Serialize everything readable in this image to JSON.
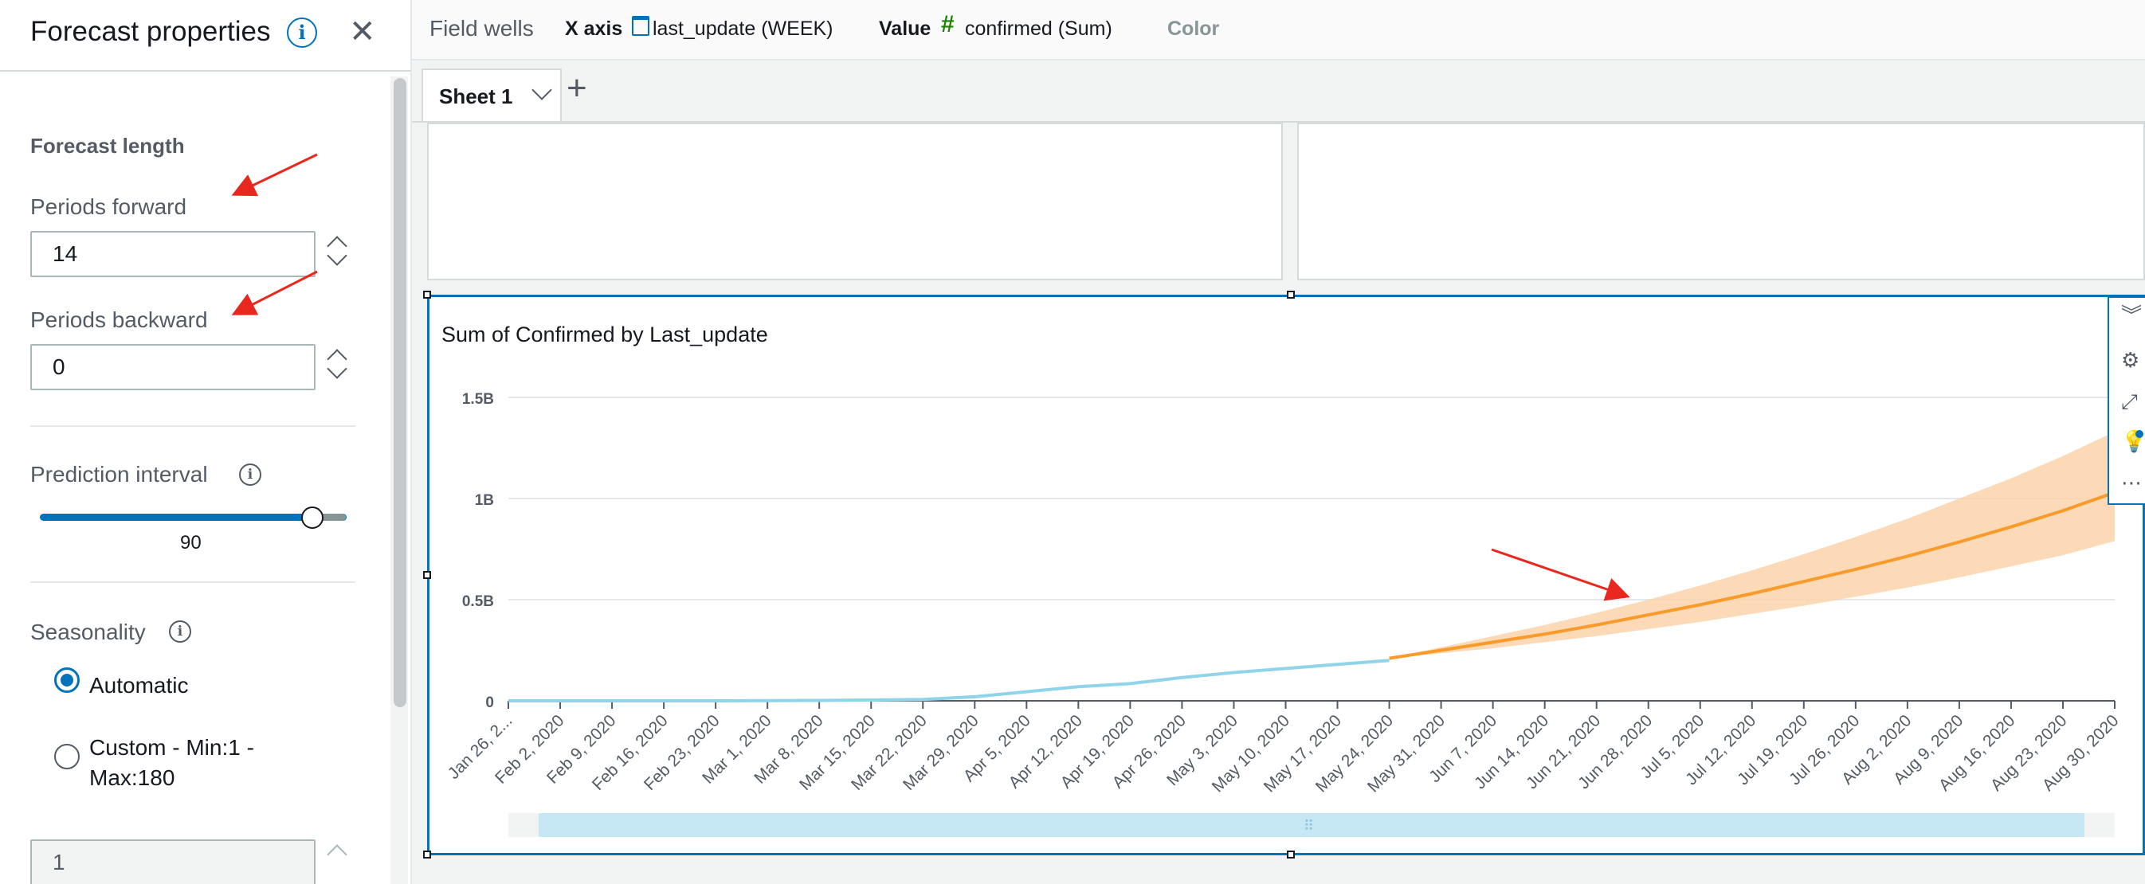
{
  "panel": {
    "title": "Forecast properties",
    "close_symbol": "✕",
    "info_symbol": "i",
    "forecast_length_title": "Forecast length",
    "periods_forward_label": "Periods forward",
    "periods_forward_value": "14",
    "periods_backward_label": "Periods backward",
    "periods_backward_value": "0",
    "prediction_interval_label": "Prediction interval",
    "prediction_interval_value": "90",
    "prediction_interval_fraction": 0.9,
    "seasonality_label": "Seasonality",
    "seasonality_options": [
      {
        "label": "Automatic",
        "checked": true
      },
      {
        "label": "Custom - Min:1 -",
        "label2": "Max:180",
        "checked": false
      }
    ],
    "seasonality_value": "1"
  },
  "field_wells": {
    "title": "Field wells",
    "x_axis_key": "X axis",
    "x_axis_value": "last_update (WEEK)",
    "value_key": "Value",
    "value_value": "confirmed (Sum)",
    "color_key": "Color",
    "hash_symbol": "#"
  },
  "sheets": {
    "tab_label": "Sheet 1",
    "add_symbol": "+"
  },
  "visual": {
    "title": "Sum of Confirmed by Last_update",
    "toolbar_icons": [
      "collapse-icon",
      "gear-icon",
      "expand-icon",
      "lightbulb-icon",
      "more-icon"
    ]
  },
  "chart_data": {
    "type": "line",
    "title": "Sum of Confirmed by Last_update",
    "xlabel": "",
    "ylabel": "",
    "y_ticks": [
      "0",
      "0.5B",
      "1B",
      "1.5B"
    ],
    "ylim": [
      0,
      1500000000
    ],
    "x": [
      "Jan 26, 2...",
      "Feb 2, 2020",
      "Feb 9, 2020",
      "Feb 16, 2020",
      "Feb 23, 2020",
      "Mar 1, 2020",
      "Mar 8, 2020",
      "Mar 15, 2020",
      "Mar 22, 2020",
      "Mar 29, 2020",
      "Apr 5, 2020",
      "Apr 12, 2020",
      "Apr 19, 2020",
      "Apr 26, 2020",
      "May 3, 2020",
      "May 10, 2020",
      "May 17, 2020",
      "May 24, 2020",
      "May 31, 2020",
      "Jun 7, 2020",
      "Jun 14, 2020",
      "Jun 21, 2020",
      "Jun 28, 2020",
      "Jul 5, 2020",
      "Jul 12, 2020",
      "Jul 19, 2020",
      "Jul 26, 2020",
      "Aug 2, 2020",
      "Aug 9, 2020",
      "Aug 16, 2020",
      "Aug 23, 2020",
      "Aug 30, 2020"
    ],
    "grid": true,
    "legend": "none",
    "colors": {
      "actual": "#8fd4e8",
      "forecast": "#f89b2b",
      "band": "#fbd3aa"
    },
    "series": [
      {
        "values": [
          0,
          0,
          0,
          0,
          0,
          1000000,
          2000000,
          4000000,
          7000000,
          20000000,
          45000000,
          70000000,
          85000000,
          115000000,
          140000000,
          160000000,
          180000000,
          200000000,
          null,
          null,
          null,
          null,
          null,
          null,
          null,
          null,
          null,
          null,
          null,
          null,
          null,
          null
        ]
      },
      {
        "values": [
          null,
          null,
          null,
          null,
          null,
          null,
          null,
          null,
          null,
          null,
          null,
          null,
          null,
          null,
          null,
          null,
          null,
          210000000,
          250000000,
          290000000,
          330000000,
          375000000,
          425000000,
          475000000,
          530000000,
          590000000,
          650000000,
          715000000,
          785000000,
          860000000,
          940000000,
          1030000000
        ],
        "lower": [
          null,
          null,
          null,
          null,
          null,
          null,
          null,
          null,
          null,
          null,
          null,
          null,
          null,
          null,
          null,
          null,
          null,
          210000000,
          235000000,
          260000000,
          290000000,
          320000000,
          355000000,
          390000000,
          430000000,
          470000000,
          515000000,
          560000000,
          610000000,
          665000000,
          720000000,
          790000000
        ],
        "upper": [
          null,
          null,
          null,
          null,
          null,
          null,
          null,
          null,
          null,
          null,
          null,
          null,
          null,
          null,
          null,
          null,
          null,
          210000000,
          265000000,
          320000000,
          375000000,
          435000000,
          500000000,
          570000000,
          645000000,
          725000000,
          810000000,
          900000000,
          1000000000,
          1100000000,
          1210000000,
          1330000000
        ]
      }
    ]
  }
}
